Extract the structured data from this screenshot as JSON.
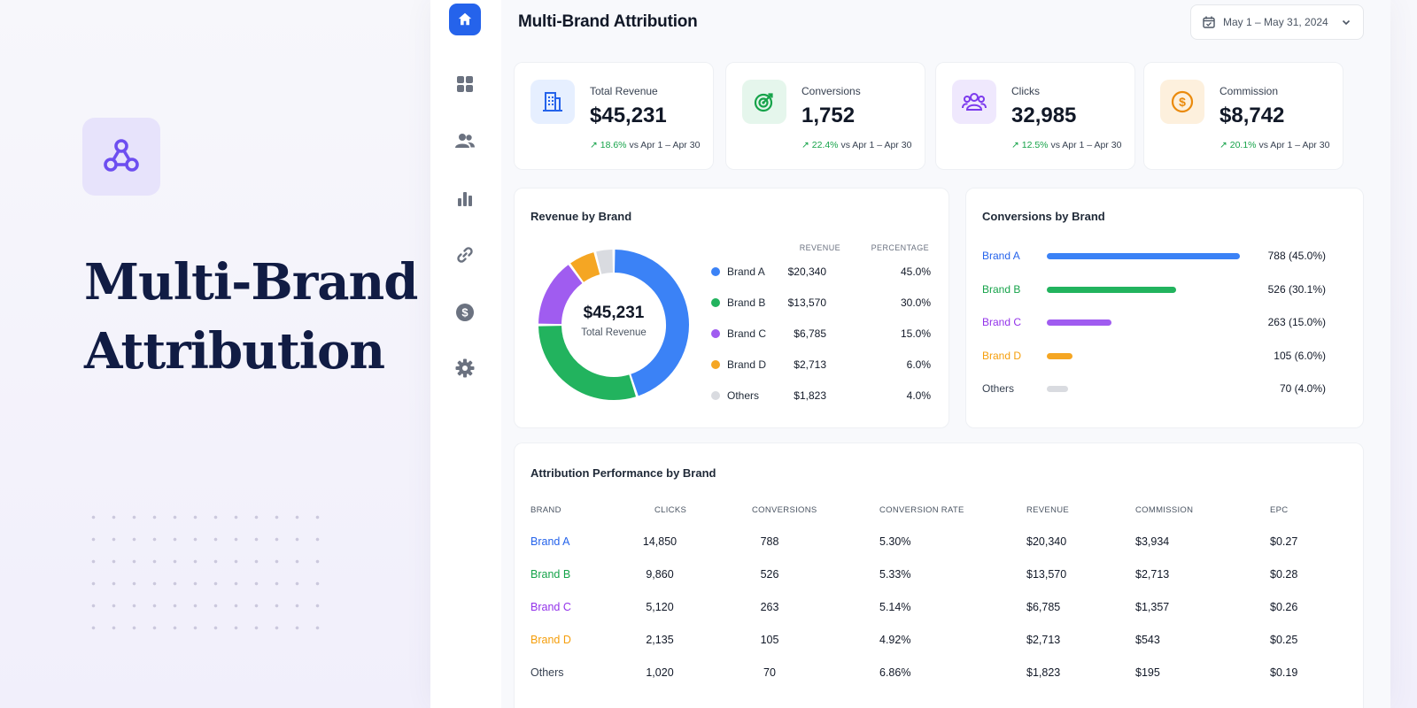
{
  "hero": {
    "logo_icon": "brand-network-icon",
    "title_line1": "Multi-Brand",
    "title_line2": "Attribution"
  },
  "sidebar": {
    "items": [
      {
        "icon": "home-icon",
        "active": true
      },
      {
        "icon": "grid-icon",
        "active": false
      },
      {
        "icon": "users-icon",
        "active": false
      },
      {
        "icon": "bar-chart-icon",
        "active": false
      },
      {
        "icon": "link-icon",
        "active": false
      },
      {
        "icon": "dollar-icon",
        "active": false
      },
      {
        "icon": "gear-icon",
        "active": false
      }
    ]
  },
  "header": {
    "title": "Multi-Brand Attribution",
    "date_range": "May 1 – May 31, 2024"
  },
  "kpis": [
    {
      "label": "Total Revenue",
      "value": "$45,231",
      "delta": "18.6%",
      "compare": "vs Apr 1 – Apr 30",
      "icon": "building-icon",
      "color": "#2563eb"
    },
    {
      "label": "Conversions",
      "value": "1,752",
      "delta": "22.4%",
      "compare": "vs Apr 1 – Apr 30",
      "icon": "target-icon",
      "color": "#16a34a"
    },
    {
      "label": "Clicks",
      "value": "32,985",
      "delta": "12.5%",
      "compare": "vs Apr 1 – Apr 30",
      "icon": "users-icon",
      "color": "#7c3aed"
    },
    {
      "label": "Commission",
      "value": "$8,742",
      "delta": "20.1%",
      "compare": "vs Apr 1 – Apr 30",
      "icon": "coin-icon",
      "color": "#ea8a0c"
    }
  ],
  "revenue_panel": {
    "title": "Revenue by Brand",
    "center_value": "$45,231",
    "center_label": "Total Revenue",
    "col_revenue": "REVENUE",
    "col_percentage": "PERCENTAGE"
  },
  "conversions_panel": {
    "title": "Conversions by Brand"
  },
  "attribution_table": {
    "title": "Attribution Performance by Brand",
    "headers": [
      "BRAND",
      "CLICKS",
      "CONVERSIONS",
      "CONVERSION RATE",
      "REVENUE",
      "COMMISSION",
      "EPC"
    ],
    "rows": [
      [
        "Brand A",
        "14,850",
        "788",
        "5.30%",
        "$20,340",
        "$3,934",
        "$0.27"
      ],
      [
        "Brand B",
        "9,860",
        "526",
        "5.33%",
        "$13,570",
        "$2,713",
        "$0.28"
      ],
      [
        "Brand C",
        "5,120",
        "263",
        "5.14%",
        "$6,785",
        "$1,357",
        "$0.26"
      ],
      [
        "Brand D",
        "2,135",
        "105",
        "4.92%",
        "$2,713",
        "$543",
        "$0.25"
      ],
      [
        "Others",
        "1,020",
        "70",
        "6.86%",
        "$1,823",
        "$195",
        "$0.19"
      ]
    ]
  },
  "brand_colors": [
    "#3b82f6",
    "#22b35e",
    "#a05cf0",
    "#f5a623",
    "#d9dbe0"
  ],
  "brand_text_colors": [
    "#2563eb",
    "#16a34a",
    "#9333ea",
    "#f59e0b",
    "#374151"
  ],
  "chart_data": [
    {
      "type": "pie",
      "title": "Revenue by Brand",
      "categories": [
        "Brand A",
        "Brand B",
        "Brand C",
        "Brand D",
        "Others"
      ],
      "values": [
        20340,
        13570,
        6785,
        2713,
        1823
      ],
      "value_labels": [
        "$20,340",
        "$13,570",
        "$6,785",
        "$2,713",
        "$1,823"
      ],
      "percent_labels": [
        "45.0%",
        "30.0%",
        "15.0%",
        "6.0%",
        "4.0%"
      ],
      "percentages": [
        45.0,
        30.0,
        15.0,
        6.0,
        4.0
      ]
    },
    {
      "type": "bar",
      "title": "Conversions by Brand",
      "categories": [
        "Brand A",
        "Brand B",
        "Brand C",
        "Brand D",
        "Others"
      ],
      "values": [
        788,
        526,
        263,
        105,
        70
      ],
      "value_labels": [
        "788 (45.0%)",
        "526 (30.1%)",
        "263 (15.0%)",
        "105 (6.0%)",
        "70 (4.0%)"
      ]
    }
  ]
}
